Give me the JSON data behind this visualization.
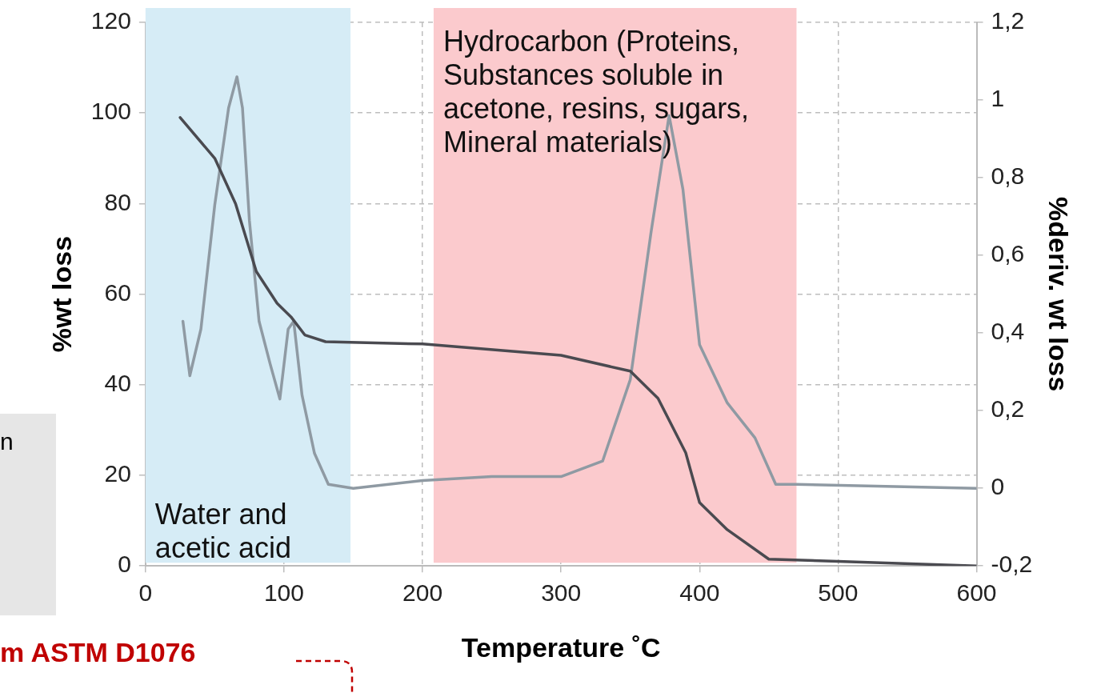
{
  "chart_data": {
    "type": "line",
    "xlabel": "Temperature ˚C",
    "ylabel": "%wt loss",
    "y2label": "%deriv. wt loss",
    "xlim": [
      0,
      600
    ],
    "xticks": [
      0,
      100,
      200,
      300,
      400,
      500,
      600
    ],
    "ylim": [
      0,
      120
    ],
    "yticks": [
      0,
      20,
      40,
      60,
      80,
      100,
      120
    ],
    "y2lim": [
      -0.2,
      1.2
    ],
    "y2ticks": [
      {
        "value": -0.2,
        "label": "-0,2"
      },
      {
        "value": 0,
        "label": "0"
      },
      {
        "value": 0.2,
        "label": "0,2"
      },
      {
        "value": 0.4,
        "label": "0,4"
      },
      {
        "value": 0.6,
        "label": "0,6"
      },
      {
        "value": 0.8,
        "label": "0,8"
      },
      {
        "value": 1,
        "label": "1"
      },
      {
        "value": 1.2,
        "label": "1,2"
      }
    ],
    "grid": true,
    "legend": false,
    "marker": "none",
    "line_style": "solid",
    "series": [
      {
        "color": "#4a4a50",
        "x": [
          25,
          50,
          65,
          80,
          95,
          105,
          115,
          130,
          200,
          300,
          350,
          370,
          390,
          400,
          420,
          450,
          500,
          600
        ],
        "values": [
          99,
          90,
          80,
          65,
          58,
          55,
          51,
          49.5,
          49,
          46.5,
          43,
          37,
          25,
          14,
          8,
          1.5,
          1,
          0
        ]
      },
      {
        "color": "#8f9aa3",
        "axis": "y2",
        "x": [
          27,
          32,
          40,
          50,
          60,
          66,
          70,
          75,
          82,
          90,
          97,
          103,
          107,
          113,
          122,
          132,
          150,
          200,
          250,
          300,
          330,
          350,
          365,
          378,
          388,
          400,
          420,
          440,
          455,
          470,
          600
        ],
        "values": [
          0.43,
          0.29,
          0.41,
          0.73,
          0.98,
          1.06,
          0.98,
          0.69,
          0.43,
          0.32,
          0.23,
          0.41,
          0.43,
          0.24,
          0.09,
          0.01,
          0,
          0.02,
          0.03,
          0.03,
          0.07,
          0.28,
          0.66,
          0.96,
          0.77,
          0.37,
          0.22,
          0.13,
          0.01,
          0.01,
          0
        ]
      }
    ],
    "bands": [
      {
        "axis": "x",
        "from": 0,
        "to": 148,
        "label": "Water and acetic acid",
        "color": "#d6ecf6"
      },
      {
        "axis": "x",
        "from": 208,
        "to": 470,
        "label": "Hydrocarbon (Proteins, Substances soluble in acetone, resins, sugars, Mineral materials)",
        "color": "#fbcacd"
      }
    ],
    "annotations": [
      "n",
      "m ASTM D1076"
    ]
  }
}
